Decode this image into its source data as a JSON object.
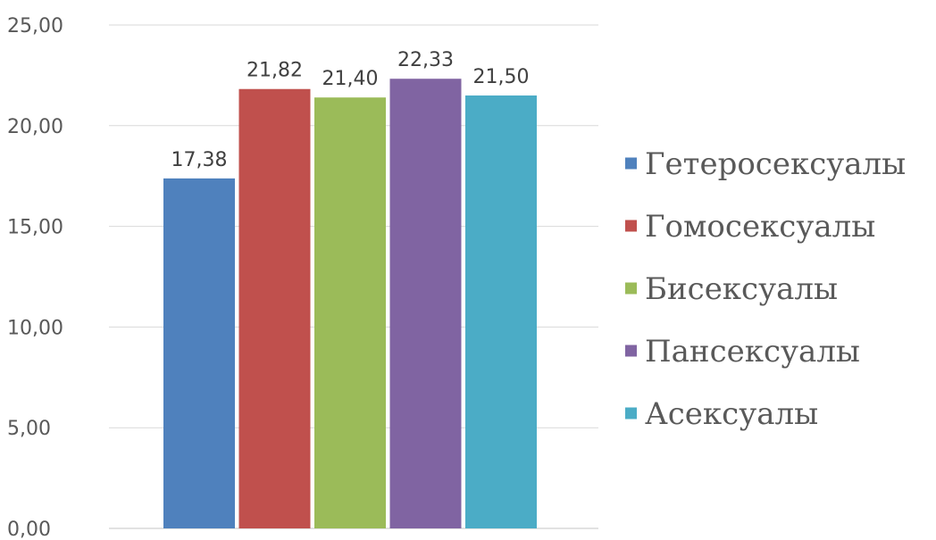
{
  "chart_data": {
    "type": "bar",
    "title": "",
    "xlabel": "",
    "ylabel": "",
    "ylim": [
      0,
      25
    ],
    "y_ticks": [
      0,
      5,
      10,
      15,
      20,
      25
    ],
    "y_tick_labels": [
      "0,00",
      "5,00",
      "10,00",
      "15,00",
      "20,00",
      "25,00"
    ],
    "grid": true,
    "legend_position": "right",
    "categories": [
      ""
    ],
    "series": [
      {
        "name": "Гетеросексуалы",
        "values": [
          17.38
        ],
        "label": "17,38",
        "color": "#4F81BD"
      },
      {
        "name": "Гомосексуалы",
        "values": [
          21.82
        ],
        "label": "21,82",
        "color": "#C0504D"
      },
      {
        "name": "Бисексуалы",
        "values": [
          21.4
        ],
        "label": "21,40",
        "color": "#9BBB59"
      },
      {
        "name": "Пансексуалы",
        "values": [
          22.33
        ],
        "label": "22,33",
        "color": "#8064A2"
      },
      {
        "name": "Асексуалы",
        "values": [
          21.5
        ],
        "label": "21,50",
        "color": "#4BACC6"
      }
    ]
  }
}
